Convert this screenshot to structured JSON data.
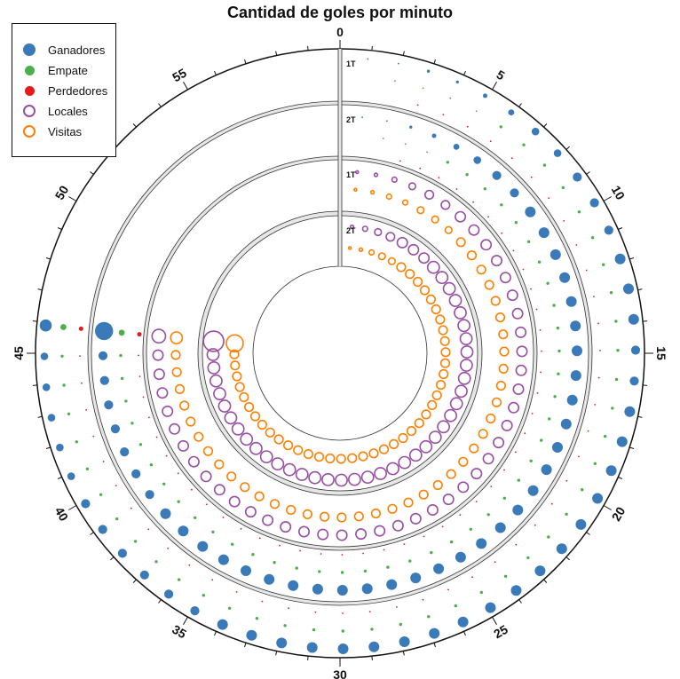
{
  "chart_data": {
    "type": "polar-bubble",
    "title": "Cantidad de goles por minuto",
    "angle_ticks": [
      "0",
      "5",
      "10",
      "15",
      "20",
      "25",
      "30",
      "35",
      "40",
      "45",
      "50",
      "55"
    ],
    "half_labels": [
      "1T",
      "2T",
      "1T",
      "2T"
    ],
    "legend": [
      {
        "label": "Ganadores",
        "color": "#3a7ab8",
        "style": "filled"
      },
      {
        "label": "Empate",
        "color": "#4daf4a",
        "style": "filled"
      },
      {
        "label": "Perdedores",
        "color": "#e41a1c",
        "style": "filled"
      },
      {
        "label": "Locales",
        "color": "#984ea3",
        "style": "open"
      },
      {
        "label": "Visitas",
        "color": "#ff7f00",
        "style": "open"
      }
    ],
    "rings": [
      {
        "half": "1T",
        "group": "resultado",
        "minutes_shown": 45,
        "series": [
          {
            "name": "Ganadores",
            "values": [
              1,
              1,
              2,
              2,
              3,
              4,
              5,
              5,
              6,
              6,
              6,
              7,
              7,
              7,
              6,
              6,
              7,
              7,
              7,
              7,
              7,
              7,
              7,
              7,
              7,
              7,
              7,
              7,
              7,
              7,
              7,
              7,
              7,
              7,
              6,
              6,
              6,
              6,
              6,
              6,
              5,
              5,
              5,
              5,
              5,
              8
            ]
          },
          {
            "name": "Empate",
            "values": [
              0,
              1,
              1,
              1,
              1,
              2,
              2,
              2,
              2,
              2,
              2,
              2,
              2,
              2,
              2,
              2,
              2,
              2,
              2,
              2,
              2,
              2,
              2,
              2,
              2,
              2,
              2,
              2,
              2,
              2,
              2,
              2,
              2,
              2,
              2,
              2,
              2,
              2,
              2,
              2,
              2,
              2,
              2,
              2,
              2,
              4
            ]
          },
          {
            "name": "Perdedores",
            "values": [
              0,
              0,
              1,
              1,
              1,
              1,
              1,
              1,
              1,
              1,
              1,
              1,
              1,
              1,
              1,
              1,
              1,
              1,
              1,
              1,
              1,
              1,
              1,
              1,
              1,
              1,
              1,
              1,
              1,
              1,
              1,
              1,
              1,
              1,
              1,
              1,
              1,
              1,
              1,
              1,
              1,
              1,
              1,
              1,
              1,
              3
            ]
          }
        ]
      },
      {
        "half": "2T",
        "group": "resultado",
        "minutes_shown": 45,
        "series": [
          {
            "name": "Ganadores",
            "values": [
              1,
              1,
              2,
              3,
              4,
              5,
              6,
              6,
              7,
              7,
              7,
              7,
              7,
              7,
              7,
              7,
              7,
              7,
              7,
              7,
              7,
              7,
              7,
              7,
              7,
              7,
              7,
              7,
              7,
              7,
              7,
              7,
              7,
              7,
              7,
              7,
              7,
              7,
              6,
              6,
              6,
              6,
              6,
              6,
              6,
              12
            ]
          },
          {
            "name": "Empate",
            "values": [
              0,
              1,
              1,
              1,
              2,
              2,
              2,
              2,
              2,
              2,
              2,
              2,
              2,
              2,
              2,
              2,
              2,
              2,
              2,
              2,
              2,
              2,
              2,
              2,
              2,
              2,
              2,
              2,
              2,
              2,
              2,
              2,
              2,
              2,
              2,
              2,
              2,
              2,
              2,
              2,
              2,
              2,
              2,
              2,
              2,
              4
            ]
          },
          {
            "name": "Perdedores",
            "values": [
              0,
              0,
              1,
              1,
              1,
              1,
              1,
              1,
              1,
              1,
              1,
              1,
              1,
              1,
              1,
              1,
              1,
              1,
              1,
              1,
              1,
              1,
              1,
              1,
              1,
              1,
              1,
              1,
              1,
              1,
              1,
              1,
              1,
              1,
              1,
              1,
              1,
              1,
              1,
              1,
              1,
              1,
              1,
              1,
              1,
              3
            ]
          }
        ]
      },
      {
        "half": "1T",
        "group": "condicion",
        "minutes_shown": 45,
        "series": [
          {
            "name": "Locales",
            "values": [
              1,
              2,
              3,
              4,
              5,
              5,
              6,
              6,
              6,
              6,
              6,
              6,
              6,
              6,
              6,
              6,
              6,
              6,
              6,
              6,
              6,
              6,
              6,
              6,
              6,
              6,
              6,
              6,
              6,
              6,
              6,
              6,
              6,
              6,
              6,
              6,
              6,
              6,
              6,
              6,
              6,
              6,
              6,
              6,
              6,
              8
            ]
          },
          {
            "name": "Visitas",
            "values": [
              1,
              2,
              3,
              3,
              4,
              4,
              4,
              5,
              5,
              5,
              5,
              5,
              5,
              5,
              5,
              5,
              5,
              5,
              5,
              5,
              5,
              5,
              5,
              5,
              5,
              5,
              5,
              5,
              5,
              5,
              5,
              5,
              5,
              5,
              5,
              5,
              5,
              5,
              5,
              5,
              5,
              5,
              5,
              5,
              5,
              7
            ]
          }
        ]
      },
      {
        "half": "2T",
        "group": "condicion",
        "minutes_shown": 45,
        "series": [
          {
            "name": "Locales",
            "values": [
              2,
              3,
              4,
              5,
              6,
              6,
              6,
              7,
              7,
              7,
              7,
              7,
              7,
              7,
              7,
              7,
              7,
              7,
              7,
              7,
              7,
              7,
              7,
              7,
              7,
              7,
              7,
              7,
              7,
              7,
              7,
              7,
              7,
              7,
              7,
              7,
              7,
              7,
              7,
              7,
              7,
              7,
              7,
              7,
              7,
              12
            ]
          },
          {
            "name": "Visitas",
            "values": [
              1,
              2,
              3,
              4,
              4,
              5,
              5,
              5,
              5,
              5,
              5,
              5,
              5,
              5,
              5,
              5,
              5,
              5,
              5,
              5,
              5,
              5,
              5,
              5,
              5,
              5,
              5,
              5,
              5,
              5,
              5,
              5,
              5,
              5,
              5,
              5,
              5,
              5,
              5,
              5,
              5,
              5,
              5,
              5,
              5,
              10
            ]
          }
        ]
      }
    ]
  }
}
